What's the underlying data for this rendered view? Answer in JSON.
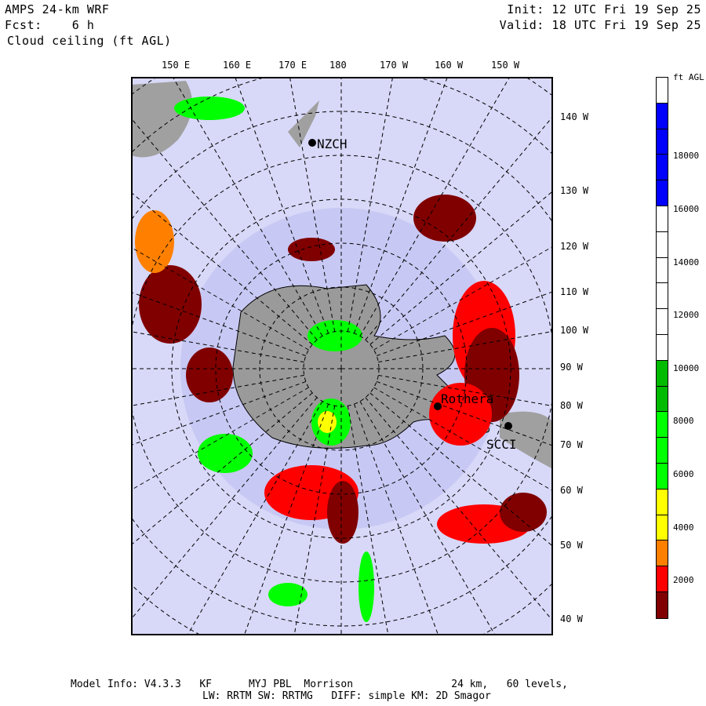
{
  "header": {
    "model": "AMPS 24-km WRF",
    "fcst": "Fcst:    6 h",
    "field": "Cloud ceiling (ft AGL)",
    "init": "Init: 12 UTC Fri 19 Sep 25",
    "valid": "Valid: 18 UTC Fri 19 Sep 25"
  },
  "top_lon_labels": [
    "150 E",
    "160 E",
    "170 E",
    "180",
    "170 W",
    "160 W",
    "150 W"
  ],
  "right_lon_labels": [
    "140 W",
    "130 W",
    "120 W",
    "110 W",
    "100 W",
    "90 W",
    "80 W",
    "70 W",
    "60 W",
    "50 W",
    "40 W"
  ],
  "stations": [
    {
      "name": "NZCH"
    },
    {
      "name": "Rothera"
    },
    {
      "name": "SCCI"
    }
  ],
  "colorbar": {
    "unit": "ft AGL",
    "labels": [
      "18000",
      "16000",
      "14000",
      "12000",
      "10000",
      "8000",
      "6000",
      "4000",
      "2000"
    ],
    "segments_top_to_bottom": [
      "#ffffff",
      "#0000ff",
      "#0000ff",
      "#0000ff",
      "#0000ff",
      "#ffffff",
      "#ffffff",
      "#ffffff",
      "#ffffff",
      "#ffffff",
      "#ffffff",
      "#00bb00",
      "#00bb00",
      "#00ff00",
      "#00ff00",
      "#00ff00",
      "#ffff00",
      "#ffff00",
      "#ff8000",
      "#ff0000",
      "#800000"
    ]
  },
  "footer": {
    "line1": "Model Info: V4.3.3   KF      MYJ PBL  Morrison                24 km,   60 levels,",
    "line2": "LW: RRTM SW: RRTMG   DIFF: simple KM: 2D Smagor"
  }
}
